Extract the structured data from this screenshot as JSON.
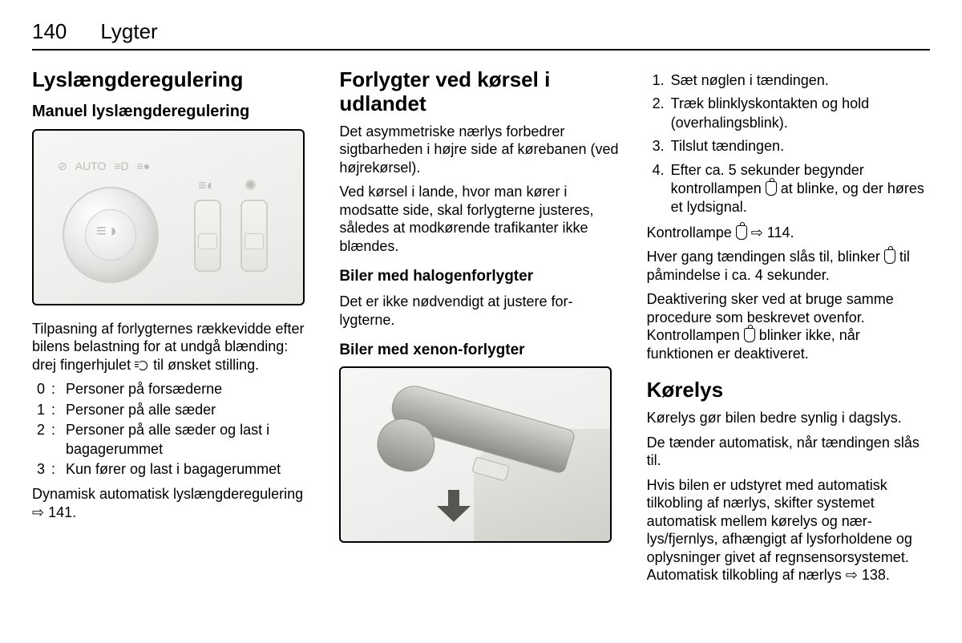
{
  "page": {
    "number": "140",
    "section": "Lygter"
  },
  "col1": {
    "h1": "Lyslængderegulering",
    "h2": "Manuel lyslængderegulering",
    "p1a": "Tilpasning af forlygternes rækkevidde efter bilens belastning for at undgå blænding: drej fingerhjulet ",
    "p1b": " til øn­sket stilling.",
    "defs": [
      {
        "k": "0",
        "v": "Personer på forsæderne"
      },
      {
        "k": "1",
        "v": "Personer på alle sæder"
      },
      {
        "k": "2",
        "v": "Personer på alle sæder og last i bagagerummet"
      },
      {
        "k": "3",
        "v": "Kun fører og last i bagagerummet"
      }
    ],
    "p2a": "Dynamisk automatisk lyslængdere­gulering ",
    "p2_ref": "⇨ 141."
  },
  "col2": {
    "h1": "Forlygter ved kørsel i udlandet",
    "p1": "Det asymmetriske nærlys forbedrer sigtbarheden i højre side af køreba­nen (ved højrekørsel).",
    "p2": "Ved kørsel i lande, hvor man kører i modsatte side, skal forlygterne juste­res, således at modkørende trafikan­ter ikke blændes.",
    "h3a": "Biler med halogenforlygter",
    "p3": "Det er ikke nødvendigt at justere for­lygterne.",
    "h3b": "Biler med xenon-forlygter"
  },
  "col3": {
    "steps": [
      "Sæt nøglen i tændingen.",
      "Træk blinklyskontakten og hold (overhalingsblink).",
      "Tilslut tændingen.",
      "Efter ca. 5 sekunder begynder kontrollampen __ICON__ at blinke, og der høres et lydsignal."
    ],
    "p1a": "Kontrollampe ",
    "p1_ref": " ⇨ 114.",
    "p2a": "Hver gang tændingen slås til, blinker ",
    "p2b": " til påmindelse i ca. 4 sekunder.",
    "p3a": "Deaktivering sker ved at bruge samme procedure som beskrevet ovenfor. Kontrollampen ",
    "p3b": " blinker ikke, når funktionen er deaktiveret.",
    "h1": "Kørelys",
    "p4": "Kørelys gør bilen bedre synlig i dags­lys.",
    "p5": "De tænder automatisk, når tændin­gen slås til.",
    "p6a": "Hvis bilen er udstyret med automatisk tilkobling af nærlys, skifter systemet automatisk mellem kørelys og nær­lys/fjernlys, afhængigt af lysforhol­dene og oplysninger givet af regn­sensorsystemet. Automatisk tilkob­ling af nærlys ",
    "p6_ref": "⇨ 138."
  }
}
